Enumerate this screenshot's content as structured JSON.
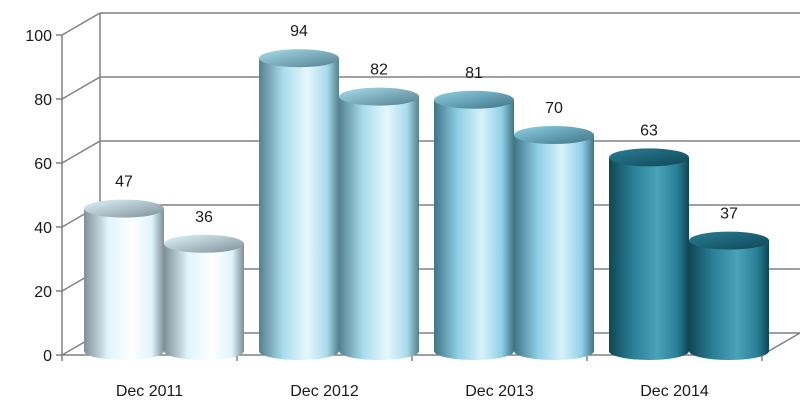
{
  "chart_data": {
    "type": "bar",
    "style": "3d-cylinder",
    "categories": [
      "Dec 2011",
      "Dec 2012",
      "Dec 2013",
      "Dec 2014"
    ],
    "series": [
      {
        "values": [
          47,
          94,
          81,
          63
        ]
      },
      {
        "values": [
          36,
          82,
          70,
          37
        ]
      }
    ],
    "data_labels": true,
    "yticks": [
      0,
      20,
      40,
      60,
      80,
      100
    ],
    "ylim": [
      0,
      100
    ],
    "grid": true,
    "legend": "none",
    "colors": {
      "groups": [
        {
          "light": "#ffffff",
          "mid": "#dff4fb",
          "dark": "#7f8f97"
        },
        {
          "light": "#e6f7fd",
          "mid": "#a7dced",
          "dark": "#55808f"
        },
        {
          "light": "#d6f2fb",
          "mid": "#8fd0e6",
          "dark": "#3f7486"
        },
        {
          "light": "#4aa3b9",
          "mid": "#2a7f96",
          "dark": "#0f4656"
        }
      ],
      "grid": "#808080"
    }
  }
}
